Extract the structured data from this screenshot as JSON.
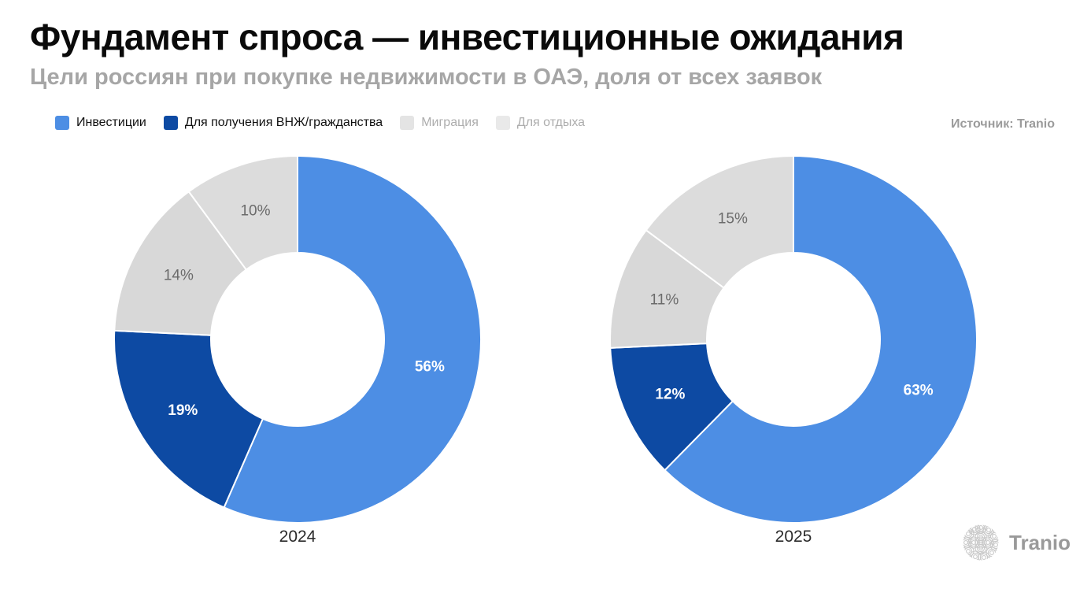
{
  "header": {
    "title": "Фундамент спроса — инвестиционные ожидания",
    "subtitle": "Цели россиян при покупке недвижимости в ОАЭ, доля от всех заявок"
  },
  "source": {
    "label": "Источник: Tranio"
  },
  "branding": {
    "logo_text": "Tranio",
    "logo_icon": "tranio-spiral-ball-icon",
    "logo_color": "#9a9a9a"
  },
  "legend": {
    "items": [
      {
        "label": "Инвестиции",
        "swatch_color": "#4D8EE4",
        "text_color": "#111111"
      },
      {
        "label": "Для получения ВНЖ/гражданства",
        "swatch_color": "#0D4AA3",
        "text_color": "#111111"
      },
      {
        "label": "Миграция",
        "swatch_color": "#E4E4E4",
        "text_color": "#ADADAD"
      },
      {
        "label": "Для отдыха",
        "swatch_color": "#E9E9E9",
        "text_color": "#ADADAD"
      }
    ]
  },
  "chart_data": {
    "type": "pie",
    "subtype": "donut",
    "title": "Фундамент спроса — инвестиционные ожидания",
    "subtitle": "Цели россиян при покупке недвижимости в ОАЭ, доля от всех заявок",
    "categories": [
      "Инвестиции",
      "Для получения ВНЖ/гражданства",
      "Миграция",
      "Для отдыха"
    ],
    "series": [
      {
        "name": "2024",
        "values": [
          56,
          19,
          14,
          10
        ]
      },
      {
        "name": "2025",
        "values": [
          63,
          12,
          11,
          15
        ]
      }
    ],
    "colors": [
      "#4D8EE4",
      "#0D4AA3",
      "#D8D8D8",
      "#DCDCDC"
    ],
    "slice_label_colors": [
      "#FFFFFF",
      "#FFFFFF",
      "#6B6B6B",
      "#6B6B6B"
    ],
    "slice_label_format": "{value}%",
    "start_angle_deg": 0,
    "direction": "clockwise",
    "inner_radius_ratio": 0.47,
    "legend_position": "top-left",
    "labels_inside": true,
    "grid": false
  }
}
